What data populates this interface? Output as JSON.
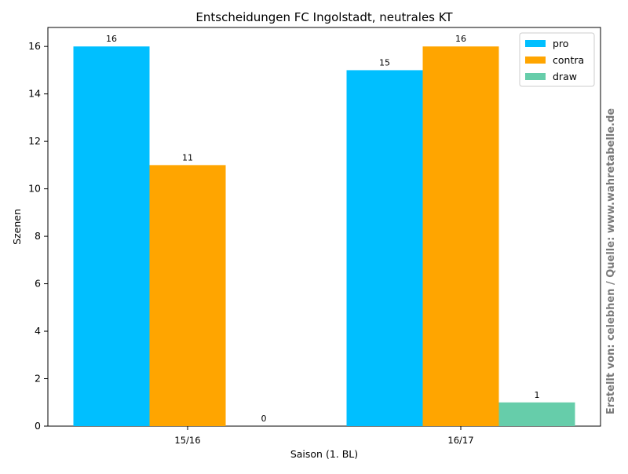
{
  "chart_data": {
    "type": "bar",
    "title": "Entscheidungen FC Ingolstadt, neutrales KT",
    "xlabel": "Saison (1. BL)",
    "ylabel": "Szenen",
    "categories": [
      "15/16",
      "16/17"
    ],
    "series": [
      {
        "name": "pro",
        "values": [
          16,
          15
        ],
        "color": "#00bfff"
      },
      {
        "name": "contra",
        "values": [
          11,
          16
        ],
        "color": "#ffa500"
      },
      {
        "name": "draw",
        "values": [
          0,
          1
        ],
        "color": "#66cdaa"
      }
    ],
    "ylim": [
      0,
      16.8
    ],
    "yticks": [
      0,
      2,
      4,
      6,
      8,
      10,
      12,
      14,
      16
    ],
    "grid": false,
    "legend_position": "top-right",
    "data_labels": true
  },
  "watermark": "Erstellt von: celebhen / Quelle: www.wahretabelle.de"
}
